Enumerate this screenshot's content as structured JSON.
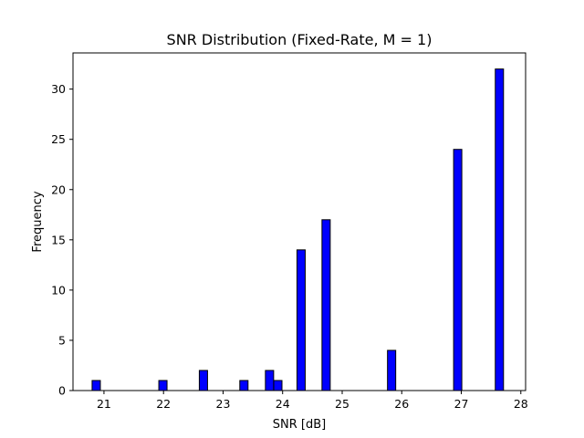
{
  "chart_data": {
    "type": "bar",
    "title": "SNR Distribution (Fixed-Rate, M = 1)",
    "xlabel": "SNR [dB]",
    "ylabel": "Frequency",
    "xlim": [
      20.48,
      28.08
    ],
    "ylim": [
      0,
      33.6
    ],
    "xticks": [
      21,
      22,
      23,
      24,
      25,
      26,
      27,
      28
    ],
    "yticks": [
      0,
      5,
      10,
      15,
      20,
      25,
      30
    ],
    "bin_width": 0.138,
    "bar_color": "#0000ff",
    "edge_color": "#000000",
    "bins": [
      {
        "x": 20.87,
        "value": 1
      },
      {
        "x": 21.99,
        "value": 1
      },
      {
        "x": 22.67,
        "value": 2
      },
      {
        "x": 23.35,
        "value": 1
      },
      {
        "x": 23.78,
        "value": 2
      },
      {
        "x": 23.92,
        "value": 1
      },
      {
        "x": 24.31,
        "value": 14
      },
      {
        "x": 24.73,
        "value": 17
      },
      {
        "x": 25.83,
        "value": 4
      },
      {
        "x": 26.94,
        "value": 24
      },
      {
        "x": 27.64,
        "value": 32
      }
    ],
    "grid": false
  }
}
